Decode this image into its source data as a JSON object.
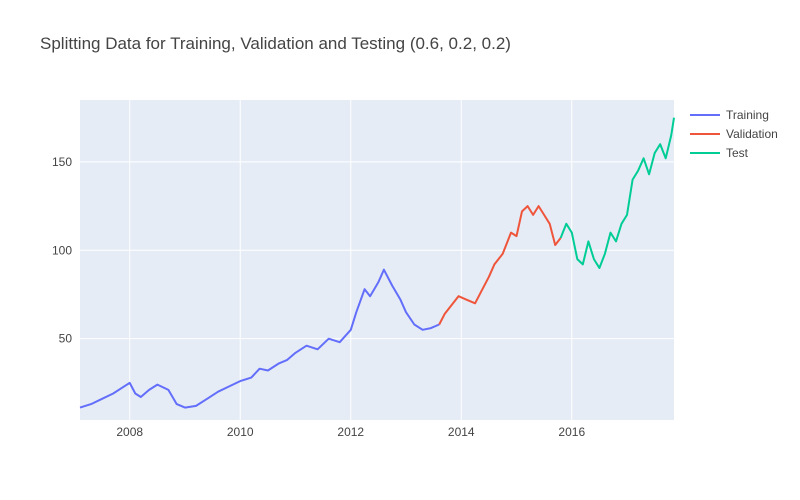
{
  "chart_data": {
    "type": "line",
    "title": "Splitting Data for Training, Validation and Testing (0.6, 0.2, 0.2)",
    "xlabel": "",
    "ylabel": "",
    "x_range": [
      2007.1,
      2017.85
    ],
    "ylim": [
      4,
      185
    ],
    "x_ticks": [
      2008,
      2010,
      2012,
      2014,
      2016
    ],
    "x_tick_labels": [
      "2008",
      "2010",
      "2012",
      "2014",
      "2016"
    ],
    "y_ticks": [
      50,
      100,
      150
    ],
    "y_tick_labels": [
      "50",
      "100",
      "150"
    ],
    "grid": true,
    "legend_position": "top-right",
    "series": [
      {
        "name": "Training",
        "color": "#636efa",
        "x": [
          2007.1,
          2007.3,
          2007.5,
          2007.7,
          2007.85,
          2008.0,
          2008.1,
          2008.2,
          2008.35,
          2008.5,
          2008.7,
          2008.85,
          2009.0,
          2009.2,
          2009.4,
          2009.6,
          2009.8,
          2010.0,
          2010.2,
          2010.35,
          2010.5,
          2010.7,
          2010.85,
          2011.0,
          2011.2,
          2011.4,
          2011.6,
          2011.8,
          2012.0,
          2012.1,
          2012.25,
          2012.35,
          2012.5,
          2012.6,
          2012.75,
          2012.9,
          2013.0,
          2013.15,
          2013.3,
          2013.45,
          2013.6
        ],
        "y": [
          11,
          13,
          16,
          19,
          22,
          25,
          19,
          17,
          21,
          24,
          21,
          13,
          11,
          12,
          16,
          20,
          23,
          26,
          28,
          33,
          32,
          36,
          38,
          42,
          46,
          44,
          50,
          48,
          55,
          65,
          78,
          74,
          82,
          89,
          80,
          72,
          65,
          58,
          55,
          56,
          58
        ]
      },
      {
        "name": "Validation",
        "color": "#ef553b",
        "x": [
          2013.6,
          2013.7,
          2013.8,
          2013.95,
          2014.1,
          2014.25,
          2014.35,
          2014.5,
          2014.6,
          2014.75,
          2014.9,
          2015.0,
          2015.1,
          2015.2,
          2015.3,
          2015.4,
          2015.5,
          2015.6,
          2015.7,
          2015.8
        ],
        "y": [
          58,
          64,
          68,
          74,
          72,
          70,
          76,
          85,
          92,
          98,
          110,
          108,
          122,
          125,
          120,
          125,
          120,
          115,
          103,
          107
        ]
      },
      {
        "name": "Test",
        "color": "#00cc96",
        "x": [
          2015.8,
          2015.9,
          2016.0,
          2016.1,
          2016.2,
          2016.3,
          2016.4,
          2016.5,
          2016.6,
          2016.7,
          2016.8,
          2016.9,
          2017.0,
          2017.1,
          2017.2,
          2017.3,
          2017.4,
          2017.5,
          2017.6,
          2017.7,
          2017.8,
          2017.85
        ],
        "y": [
          107,
          115,
          110,
          95,
          92,
          105,
          95,
          90,
          98,
          110,
          105,
          115,
          120,
          140,
          145,
          152,
          143,
          155,
          160,
          152,
          165,
          175
        ]
      }
    ]
  }
}
